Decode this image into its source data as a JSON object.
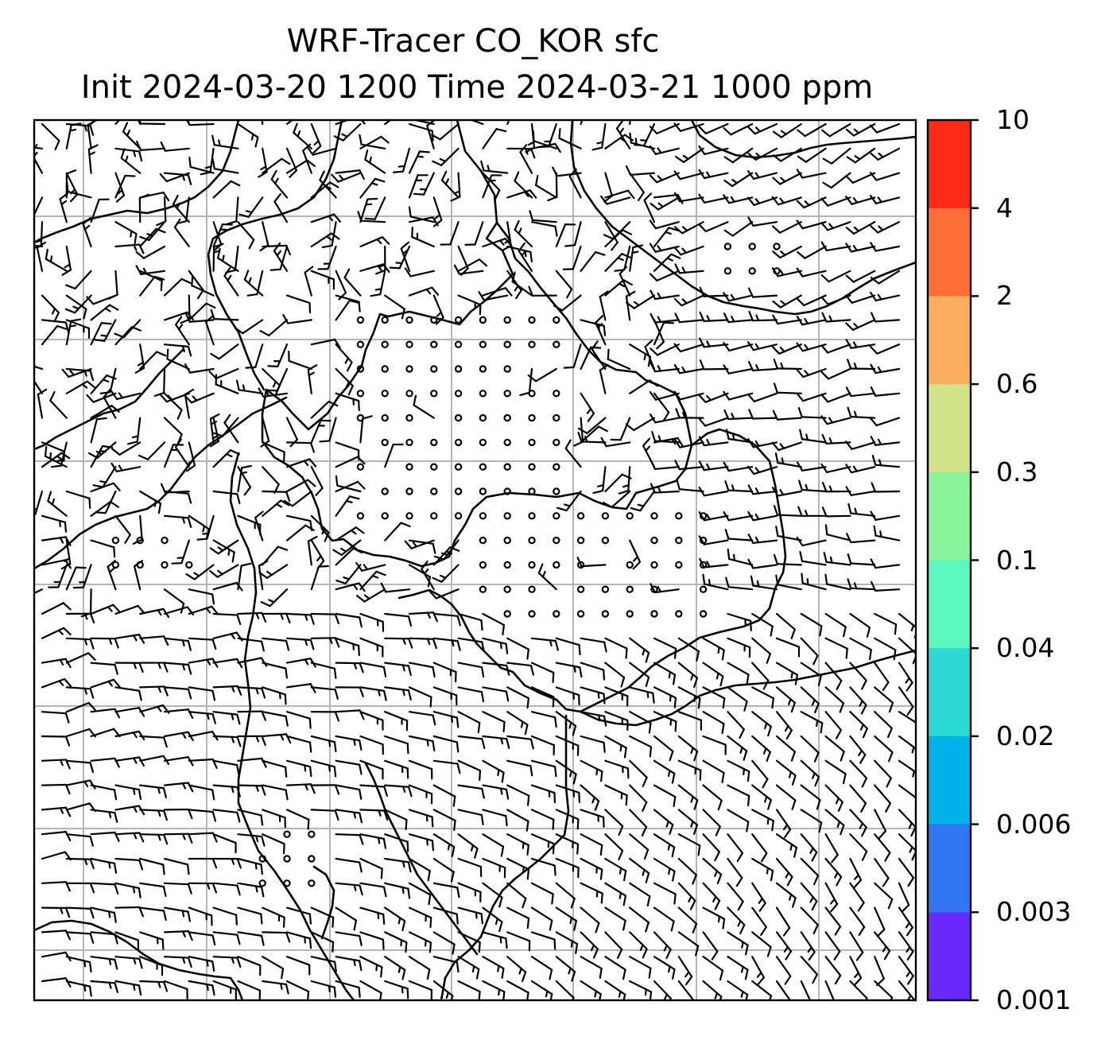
{
  "title": {
    "line1": "WRF-Tracer CO_KOR sfc",
    "line2": "Init 2024-03-20 1200 Time 2024-03-21 1000 ppm"
  },
  "colorbar": {
    "ticks": [
      "10",
      "4",
      "2",
      "0.6",
      "0.3",
      "0.1",
      "0.04",
      "0.02",
      "0.006",
      "0.003",
      "0.001"
    ],
    "colors": [
      "#ff2a15",
      "#ff6e36",
      "#fdad60",
      "#d2e288",
      "#89f59d",
      "#5cf8c0",
      "#2cd9d4",
      "#00b1ea",
      "#3176f1",
      "#6a28fc"
    ]
  },
  "map": {
    "gridlines": "on",
    "field": "surface wind barbs over coastlines"
  }
}
